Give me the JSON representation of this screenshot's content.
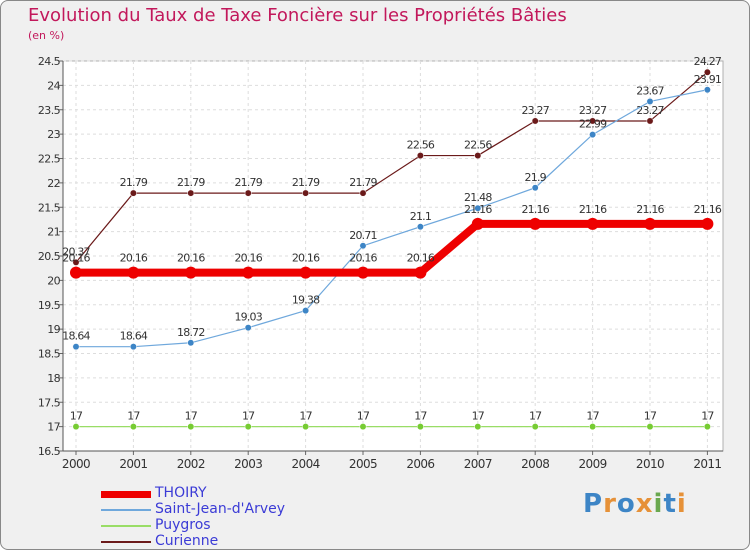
{
  "title": "Evolution du Taux de Taxe Foncière sur les Propriétés Bâties",
  "unit": "(en %)",
  "logo": "Proxiti",
  "chart_data": {
    "type": "line",
    "title": "Evolution du Taux de Taxe Foncière sur les Propriétés Bâties",
    "ylabel": "(en %)",
    "xlabel": "",
    "ylim": [
      16.5,
      24.5
    ],
    "yticks": [
      "16.5",
      "17",
      "17.5",
      "18",
      "18.5",
      "19",
      "19.5",
      "20",
      "20.5",
      "21",
      "21.5",
      "22",
      "22.5",
      "23",
      "23.5",
      "24",
      "24.5"
    ],
    "categories": [
      "2000",
      "2001",
      "2002",
      "2003",
      "2004",
      "2005",
      "2006",
      "2007",
      "2008",
      "2009",
      "2010",
      "2011"
    ],
    "series": [
      {
        "name": "Curienne",
        "color": "#6b1a1a",
        "dot": "#6b1a1a",
        "values": [
          20.37,
          21.79,
          21.79,
          21.79,
          21.79,
          21.79,
          22.56,
          22.56,
          23.27,
          23.27,
          23.27,
          24.27
        ],
        "labels": [
          "20.37",
          "21.79",
          "21.79",
          "21.79",
          "21.79",
          "21.79",
          "22.56",
          "22.56",
          "23.27",
          "23.27",
          "23.27",
          "24.27"
        ]
      },
      {
        "name": "Saint-Jean-d'Arvey",
        "color": "#6fa8dc",
        "dot": "#3d85c6",
        "values": [
          18.64,
          18.64,
          18.72,
          19.03,
          19.38,
          20.71,
          21.1,
          21.48,
          21.9,
          22.99,
          23.67,
          23.91
        ],
        "labels": [
          "18.64",
          "18.64",
          "18.72",
          "19.03",
          "19.38",
          "20.71",
          "21.1",
          "21.48",
          "21.9",
          "22.99",
          "23.67",
          "23.91"
        ]
      },
      {
        "name": "Puygros",
        "color": "#99dd66",
        "dot": "#77cc33",
        "values": [
          17,
          17,
          17,
          17,
          17,
          17,
          17,
          17,
          17,
          17,
          17,
          17
        ],
        "labels": [
          "17",
          "17",
          "17",
          "17",
          "17",
          "17",
          "17",
          "17",
          "17",
          "17",
          "17",
          "17"
        ]
      },
      {
        "name": "THOIRY",
        "color": "#ee0000",
        "dot": "#ee0000",
        "values": [
          20.16,
          20.16,
          20.16,
          20.16,
          20.16,
          20.16,
          20.16,
          21.16,
          21.16,
          21.16,
          21.16,
          21.16
        ],
        "labels": [
          "20.16",
          "20.16",
          "20.16",
          "20.16",
          "20.16",
          "20.16",
          "20.16",
          "21.16",
          "21.16",
          "21.16",
          "21.16",
          "21.16"
        ]
      }
    ],
    "legend": [
      {
        "name": "THOIRY",
        "color": "#ee0000",
        "text_color": "#3b3bd6"
      },
      {
        "name": "Saint-Jean-d'Arvey",
        "color": "#6fa8dc",
        "text_color": "#3b3bd6"
      },
      {
        "name": "Puygros",
        "color": "#99dd66",
        "text_color": "#3b3bd6"
      },
      {
        "name": "Curienne",
        "color": "#6b1a1a",
        "text_color": "#3b3bd6"
      }
    ]
  }
}
